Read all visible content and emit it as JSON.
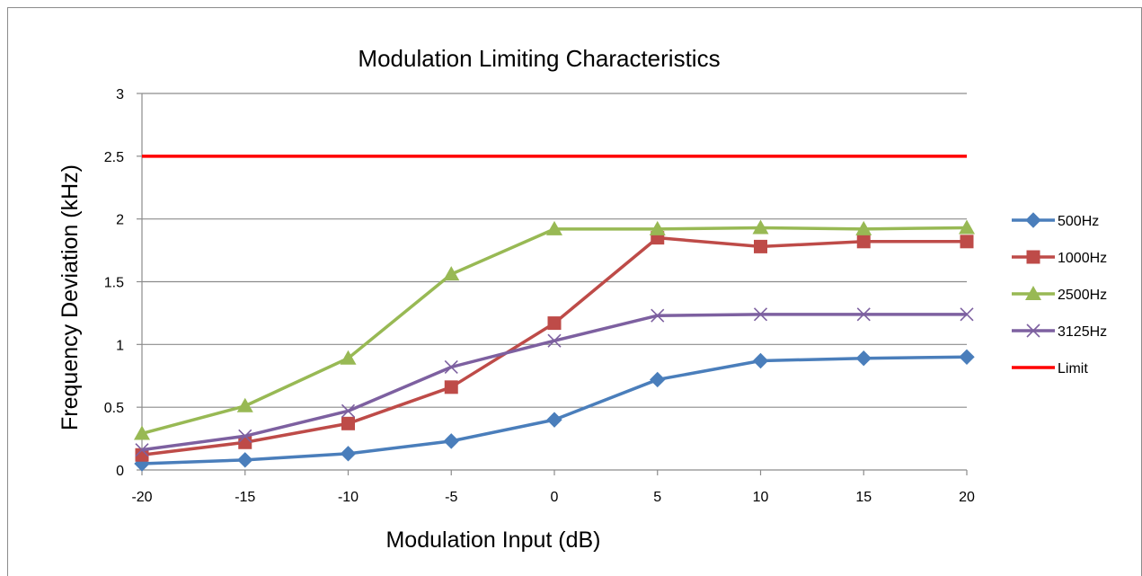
{
  "chart_data": {
    "type": "line",
    "title": "Modulation Limiting Characteristics",
    "xlabel": "Modulation Input  (dB)",
    "ylabel": "Frequency Deviation  (kHz)",
    "x": [
      -20,
      -15,
      -10,
      -5,
      0,
      5,
      10,
      15,
      20
    ],
    "x_tick_labels": [
      "-20",
      "-15",
      "-10",
      "-5",
      "0",
      "5",
      "10",
      "15",
      "20"
    ],
    "xlim": [
      -20,
      20
    ],
    "ylim": [
      0,
      3
    ],
    "y_ticks": [
      0,
      0.5,
      1,
      1.5,
      2,
      2.5,
      3
    ],
    "y_tick_labels": [
      "0",
      "0.5",
      "1",
      "1.5",
      "2",
      "2.5",
      "3"
    ],
    "grid": "horizontal",
    "legend_position": "right",
    "series": [
      {
        "name": "500Hz",
        "color": "#4a7ebb",
        "marker": "diamond",
        "values": [
          0.05,
          0.08,
          0.13,
          0.23,
          0.4,
          0.72,
          0.87,
          0.89,
          0.9
        ]
      },
      {
        "name": "1000Hz",
        "color": "#be4b48",
        "marker": "square",
        "values": [
          0.12,
          0.22,
          0.37,
          0.66,
          1.17,
          1.85,
          1.78,
          1.82,
          1.82
        ]
      },
      {
        "name": "2500Hz",
        "color": "#98b954",
        "marker": "triangle",
        "values": [
          0.29,
          0.51,
          0.89,
          1.56,
          1.92,
          1.92,
          1.93,
          1.92,
          1.93
        ]
      },
      {
        "name": "3125Hz",
        "color": "#7d60a0",
        "marker": "x",
        "values": [
          0.16,
          0.27,
          0.47,
          0.82,
          1.03,
          1.23,
          1.24,
          1.24,
          1.24
        ]
      },
      {
        "name": "Limit",
        "color": "#ff0000",
        "marker": "none",
        "values": [
          2.5,
          2.5,
          2.5,
          2.5,
          2.5,
          2.5,
          2.5,
          2.5,
          2.5
        ]
      }
    ]
  }
}
